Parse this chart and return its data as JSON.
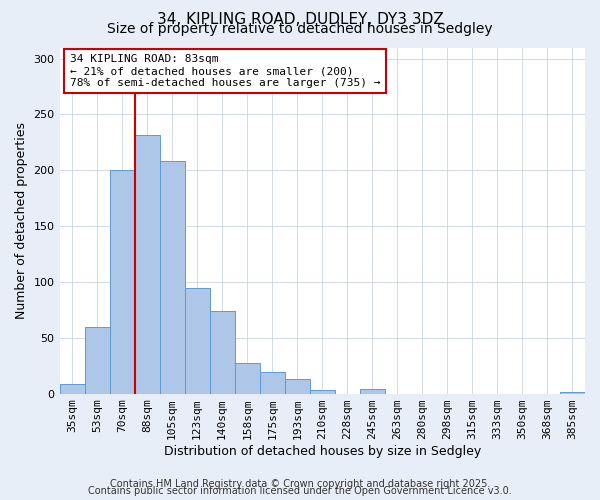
{
  "title": "34, KIPLING ROAD, DUDLEY, DY3 3DZ",
  "subtitle": "Size of property relative to detached houses in Sedgley",
  "xlabel": "Distribution of detached houses by size in Sedgley",
  "ylabel": "Number of detached properties",
  "categories": [
    "35sqm",
    "53sqm",
    "70sqm",
    "88sqm",
    "105sqm",
    "123sqm",
    "140sqm",
    "158sqm",
    "175sqm",
    "193sqm",
    "210sqm",
    "228sqm",
    "245sqm",
    "263sqm",
    "280sqm",
    "298sqm",
    "315sqm",
    "333sqm",
    "350sqm",
    "368sqm",
    "385sqm"
  ],
  "bar_heights": [
    9,
    60,
    200,
    232,
    208,
    95,
    74,
    27,
    19,
    13,
    3,
    0,
    4,
    0,
    0,
    0,
    0,
    0,
    0,
    0,
    1
  ],
  "bar_color": "#aec6e8",
  "bar_edge_color": "#5b9bd5",
  "vline_color": "#cc0000",
  "vline_x": 2.5,
  "annotation_title": "34 KIPLING ROAD: 83sqm",
  "annotation_line1": "← 21% of detached houses are smaller (200)",
  "annotation_line2": "78% of semi-detached houses are larger (735) →",
  "annotation_box_color": "#ffffff",
  "annotation_box_edge": "#cc0000",
  "ylim": [
    0,
    310
  ],
  "yticks": [
    0,
    50,
    100,
    150,
    200,
    250,
    300
  ],
  "footnote1": "Contains HM Land Registry data © Crown copyright and database right 2025.",
  "footnote2": "Contains public sector information licensed under the Open Government Licence v3.0.",
  "bg_color": "#e8eef8",
  "plot_bg_color": "#ffffff",
  "title_fontsize": 11,
  "subtitle_fontsize": 10,
  "label_fontsize": 9,
  "tick_fontsize": 8,
  "annot_fontsize": 8,
  "footnote_fontsize": 7
}
